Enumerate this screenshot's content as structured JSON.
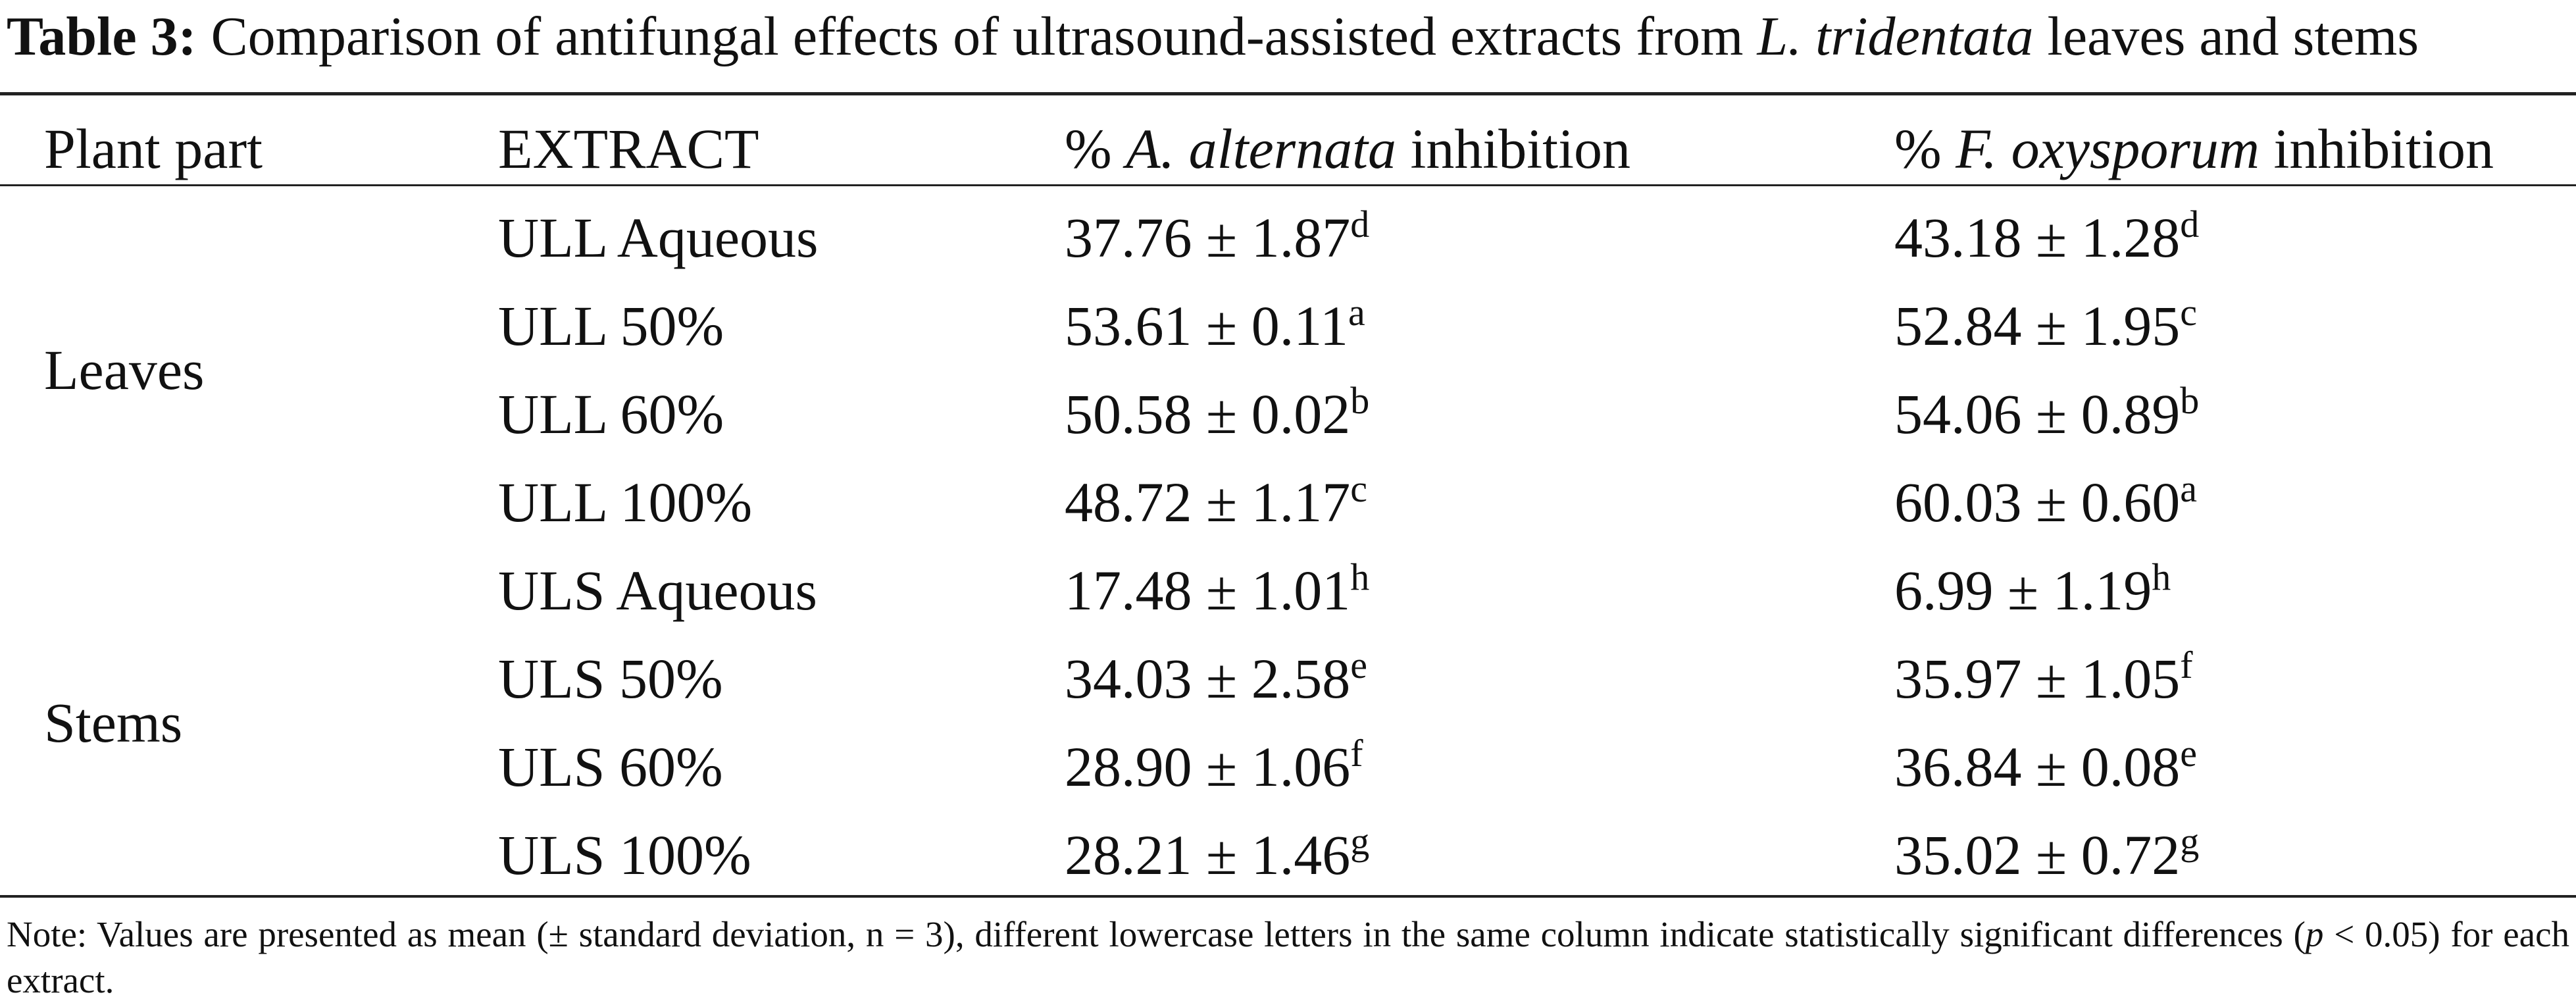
{
  "caption": [
    {
      "text": "Table 3:",
      "bold": true
    },
    {
      "text": "Comparison of antifungal effects of ultrasound-assisted extracts from "
    },
    {
      "text": "L. tridentata",
      "italic": true
    },
    {
      "text": " leaves and stems"
    }
  ],
  "table": {
    "headers": [
      [
        {
          "text": "Plant part"
        }
      ],
      [
        {
          "text": "EXTRACT"
        }
      ],
      [
        {
          "text": "% "
        },
        {
          "text": "A. alternata",
          "italic": true
        },
        {
          "text": " inhibition"
        }
      ],
      [
        {
          "text": "% "
        },
        {
          "text": "F. oxysporum",
          "italic": true
        },
        {
          "text": " inhibition"
        }
      ]
    ],
    "groups": [
      {
        "part": "Leaves",
        "rows": [
          {
            "extract": "ULL Aqueous",
            "cells": [
              {
                "value": "37.76 ± 1.87",
                "group": "d"
              },
              {
                "value": "43.18 ± 1.28",
                "group": "d"
              }
            ]
          },
          {
            "extract": "ULL 50%",
            "cells": [
              {
                "value": "53.61 ± 0.11",
                "group": "a"
              },
              {
                "value": "52.84 ± 1.95",
                "group": "c"
              }
            ]
          },
          {
            "extract": "ULL 60%",
            "cells": [
              {
                "value": "50.58 ± 0.02",
                "group": "b"
              },
              {
                "value": "54.06 ± 0.89",
                "group": "b"
              }
            ]
          },
          {
            "extract": "ULL 100%",
            "cells": [
              {
                "value": "48.72 ± 1.17",
                "group": "c"
              },
              {
                "value": "60.03 ± 0.60",
                "group": "a"
              }
            ]
          }
        ]
      },
      {
        "part": "Stems",
        "rows": [
          {
            "extract": "ULS Aqueous",
            "cells": [
              {
                "value": "17.48 ± 1.01",
                "group": "h"
              },
              {
                "value": "6.99 ± 1.19",
                "group": "h"
              }
            ]
          },
          {
            "extract": "ULS 50%",
            "cells": [
              {
                "value": "34.03 ± 2.58",
                "group": "e"
              },
              {
                "value": "35.97 ± 1.05",
                "group": "f"
              }
            ]
          },
          {
            "extract": "ULS 60%",
            "cells": [
              {
                "value": "28.90 ± 1.06",
                "group": "f"
              },
              {
                "value": "36.84 ± 0.08",
                "group": "e"
              }
            ]
          },
          {
            "extract": "ULS 100%",
            "cells": [
              {
                "value": "28.21 ± 1.46",
                "group": "g"
              },
              {
                "value": "35.02 ± 0.72",
                "group": "g"
              }
            ]
          }
        ]
      }
    ]
  },
  "note": [
    {
      "text": "Note: Values are presented as mean (± standard deviation, n = 3), different lowercase letters in the same column indicate statistically significant differences ("
    },
    {
      "text": "p",
      "italic": true
    },
    {
      "text": " < 0.05) for each extract."
    }
  ]
}
